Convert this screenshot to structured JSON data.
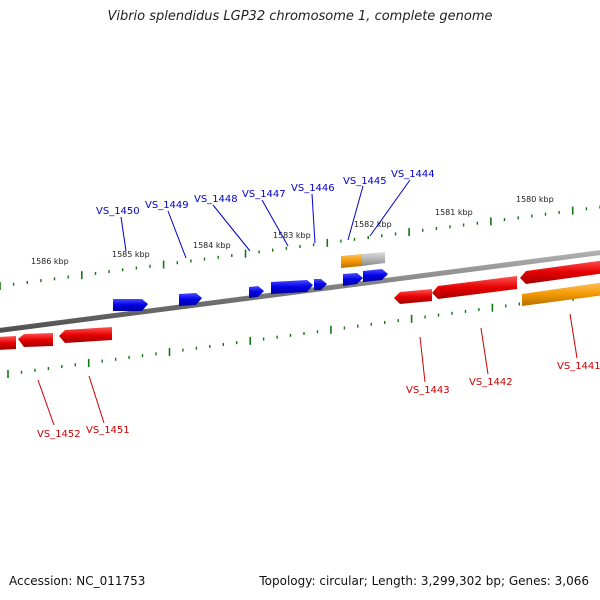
{
  "title": "Vibrio splendidus LGP32 chromosome 1, complete genome",
  "footer": {
    "accession": "Accession: NC_011753",
    "summary": "Topology: circular; Length: 3,299,302 bp; Genes: 3,066"
  },
  "colors": {
    "forward_gene": "#0000e6",
    "reverse_gene": "#e60000",
    "orange_gene": "#f29a00",
    "gray_gene": "#b5b5b5",
    "backbone": "#7a7a7a",
    "tick": "#117711"
  },
  "scale_labels": [
    "1580 kbp",
    "1581 kbp",
    "1582 kbp",
    "1583 kbp",
    "1584 kbp",
    "1585 kbp",
    "1586 kbp"
  ],
  "forward_labels": [
    "VS_1444",
    "VS_1445",
    "VS_1446",
    "VS_1447",
    "VS_1448",
    "VS_1449",
    "VS_1450"
  ],
  "reverse_labels": [
    "VS_1441",
    "VS_1442",
    "VS_1443",
    "VS_1451",
    "VS_1452"
  ]
}
